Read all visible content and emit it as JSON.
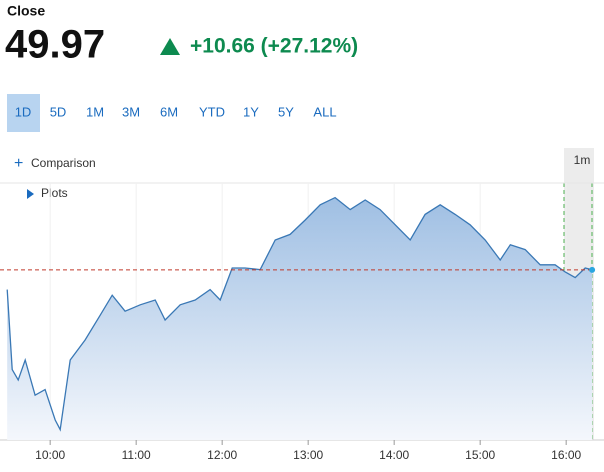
{
  "header": {
    "label": "Close",
    "price": 49.97,
    "change": "+10.66 (+27.12%)"
  },
  "tabs": [
    "1D",
    "5D",
    "1M",
    "3M",
    "6M",
    "YTD",
    "1Y",
    "5Y",
    "ALL"
  ],
  "selected_tab": "1D",
  "tools": {
    "comparison": "Comparison",
    "plots": "Plots",
    "interval": "1m"
  },
  "chart_data": {
    "type": "line",
    "x": [
      0,
      3.5,
      7.7,
      12.6,
      19.5,
      26.5,
      33.5,
      37,
      44,
      54.4,
      64.9,
      73.3,
      82.3,
      92.8,
      103.3,
      110.2,
      120.7,
      131.2,
      141.6,
      148.6,
      157,
      166,
      176.5,
      187,
      197.4,
      207.9,
      218.4,
      228.8,
      239.3,
      249.8,
      260.2,
      270.7,
      281.2,
      291.6,
      302.1,
      312.6,
      323,
      333.5,
      344,
      351,
      361.4,
      371.9,
      382.3,
      389.3,
      396.3,
      403.3,
      408.1
    ],
    "values": [
      47.5,
      37.5,
      36.2,
      38.7,
      34.3,
      35.0,
      31.2,
      30.0,
      38.7,
      41.2,
      44.3,
      46.8,
      44.8,
      45.6,
      46.2,
      43.7,
      45.6,
      46.2,
      47.5,
      46.2,
      50.2,
      50.2,
      50.0,
      53.7,
      54.4,
      56.2,
      58.1,
      59.0,
      57.5,
      58.7,
      57.5,
      55.6,
      53.7,
      56.9,
      58.1,
      56.9,
      55.6,
      53.7,
      51.2,
      53.1,
      52.5,
      50.6,
      50.6,
      49.7,
      49.0,
      50.2,
      49.97
    ],
    "color": "#3a78b5",
    "xlim": [
      -5,
      415
    ],
    "ylim": [
      28.7,
      61.2
    ],
    "xticks": [
      {
        "value": 30,
        "label": "10:00"
      },
      {
        "value": 90,
        "label": "11:00"
      },
      {
        "value": 150,
        "label": "12:00"
      },
      {
        "value": 210,
        "label": "13:00"
      },
      {
        "value": 270,
        "label": "14:00"
      },
      {
        "value": 330,
        "label": "15:00"
      },
      {
        "value": 390,
        "label": "16:00"
      }
    ],
    "grid": true
  }
}
